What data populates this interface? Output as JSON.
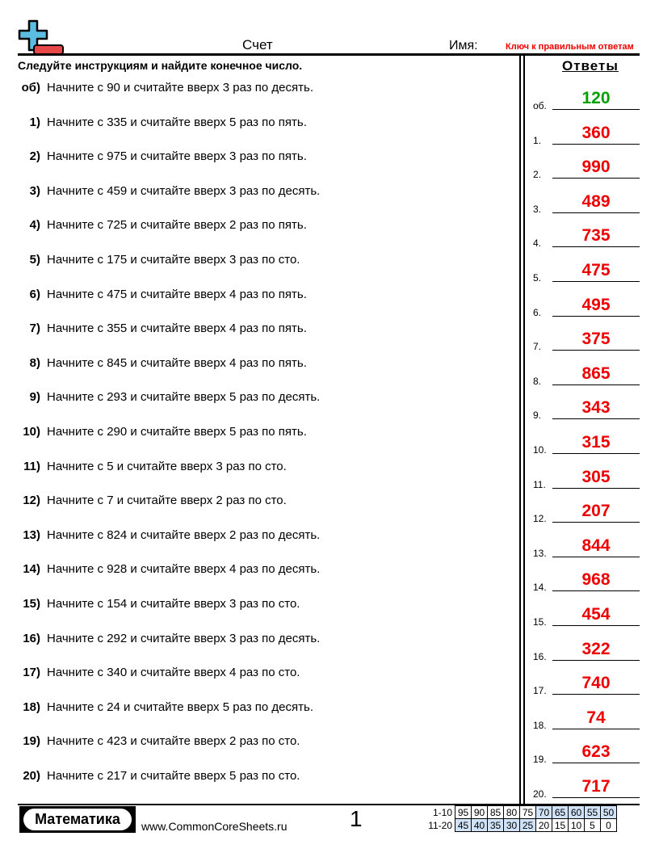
{
  "header": {
    "title": "Счет",
    "name_label": "Имя:",
    "key_label": "Ключ к правильным ответам"
  },
  "instructions": "Следуйте инструкциям и найдите конечное число.",
  "answers_title": "Ответы",
  "problems": [
    {
      "num": "об)",
      "text": "Начните с 90 и считайте вверх 3 раз по десять.",
      "answer_label": "об.",
      "answer": "120",
      "answer_color": "#00a000"
    },
    {
      "num": "1)",
      "text": "Начните с 335 и считайте вверх 5 раз по пять.",
      "answer_label": "1.",
      "answer": "360"
    },
    {
      "num": "2)",
      "text": "Начните с 975 и считайте вверх 3 раз по пять.",
      "answer_label": "2.",
      "answer": "990"
    },
    {
      "num": "3)",
      "text": "Начните с 459 и считайте вверх 3 раз по десять.",
      "answer_label": "3.",
      "answer": "489"
    },
    {
      "num": "4)",
      "text": "Начните с 725 и считайте вверх 2 раз по пять.",
      "answer_label": "4.",
      "answer": "735"
    },
    {
      "num": "5)",
      "text": "Начните с 175 и считайте вверх 3 раз по сто.",
      "answer_label": "5.",
      "answer": "475"
    },
    {
      "num": "6)",
      "text": "Начните с 475 и считайте вверх 4 раз по пять.",
      "answer_label": "6.",
      "answer": "495"
    },
    {
      "num": "7)",
      "text": "Начните с 355 и считайте вверх 4 раз по пять.",
      "answer_label": "7.",
      "answer": "375"
    },
    {
      "num": "8)",
      "text": "Начните с 845 и считайте вверх 4 раз по пять.",
      "answer_label": "8.",
      "answer": "865"
    },
    {
      "num": "9)",
      "text": "Начните с 293 и считайте вверх 5 раз по десять.",
      "answer_label": "9.",
      "answer": "343"
    },
    {
      "num": "10)",
      "text": "Начните с 290 и считайте вверх 5 раз по пять.",
      "answer_label": "10.",
      "answer": "315"
    },
    {
      "num": "11)",
      "text": "Начните с 5 и считайте вверх 3 раз по сто.",
      "answer_label": "11.",
      "answer": "305"
    },
    {
      "num": "12)",
      "text": "Начните с 7 и считайте вверх 2 раз по сто.",
      "answer_label": "12.",
      "answer": "207"
    },
    {
      "num": "13)",
      "text": "Начните с 824 и считайте вверх 2 раз по десять.",
      "answer_label": "13.",
      "answer": "844"
    },
    {
      "num": "14)",
      "text": "Начните с 928 и считайте вверх 4 раз по десять.",
      "answer_label": "14.",
      "answer": "968"
    },
    {
      "num": "15)",
      "text": "Начните с 154 и считайте вверх 3 раз по сто.",
      "answer_label": "15.",
      "answer": "454"
    },
    {
      "num": "16)",
      "text": "Начните с 292 и считайте вверх 3 раз по десять.",
      "answer_label": "16.",
      "answer": "322"
    },
    {
      "num": "17)",
      "text": "Начните с 340 и считайте вверх 4 раз по сто.",
      "answer_label": "17.",
      "answer": "740"
    },
    {
      "num": "18)",
      "text": "Начните с 24 и считайте вверх 5 раз по десять.",
      "answer_label": "18.",
      "answer": "74"
    },
    {
      "num": "19)",
      "text": "Начните с 423 и считайте вверх 2 раз по сто.",
      "answer_label": "19.",
      "answer": "623"
    },
    {
      "num": "20)",
      "text": "Начните с 217 и считайте вверх 5 раз по сто.",
      "answer_label": "20.",
      "answer": "717"
    }
  ],
  "footer": {
    "brand": "Математика",
    "site": "www.CommonCoreSheets.ru",
    "page_number": "1",
    "score_rows": [
      {
        "label": "1-10",
        "values": [
          "95",
          "90",
          "85",
          "80",
          "75",
          "70",
          "65",
          "60",
          "55",
          "50"
        ],
        "highlighted": [
          false,
          false,
          false,
          false,
          false,
          true,
          true,
          true,
          true,
          true
        ]
      },
      {
        "label": "11-20",
        "values": [
          "45",
          "40",
          "35",
          "30",
          "25",
          "20",
          "15",
          "10",
          "5",
          "0"
        ],
        "highlighted": [
          true,
          true,
          true,
          true,
          true,
          false,
          false,
          false,
          false,
          false
        ]
      }
    ]
  },
  "colors": {
    "answer": "#e00000",
    "sample_answer": "#00a000",
    "highlight": "#cfe2f8",
    "logo_plus": "#5bbde0",
    "logo_minus": "#e84848"
  }
}
